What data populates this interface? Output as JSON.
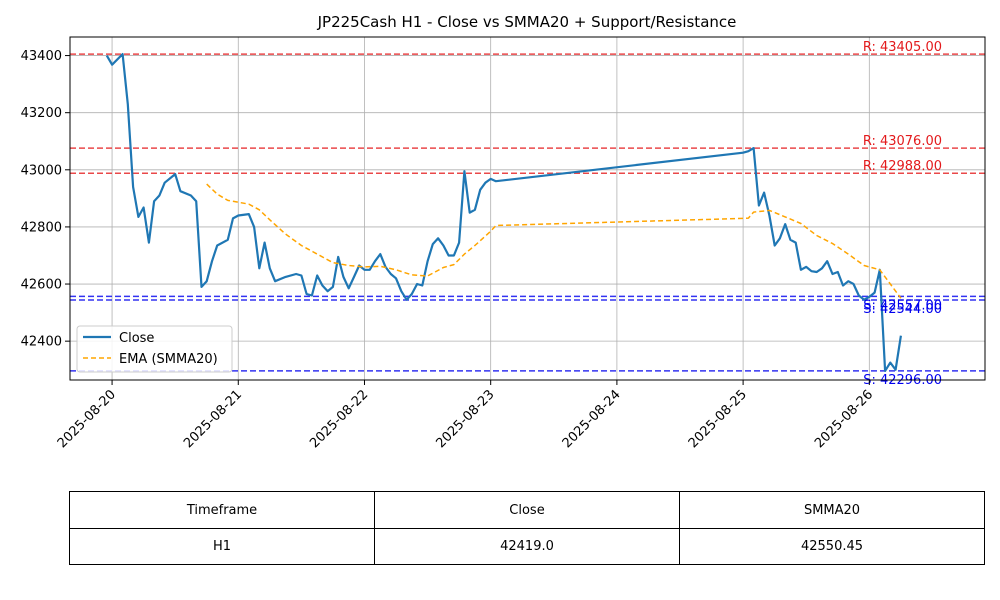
{
  "chart_data": {
    "type": "line",
    "title": "JP225Cash H1 - Close vs SMMA20 + Support/Resistance",
    "xlabel": "",
    "ylabel": "",
    "xlim": [
      "2025-08-19T16:00",
      "2025-08-26T22:00"
    ],
    "ylim": [
      42264,
      43465
    ],
    "x_ticks": [
      "2025-08-20",
      "2025-08-21",
      "2025-08-22",
      "2025-08-23",
      "2025-08-24",
      "2025-08-25",
      "2025-08-26"
    ],
    "y_ticks": [
      42400,
      42600,
      42800,
      43000,
      43200,
      43400
    ],
    "grid": true,
    "legend_position": "lower-left",
    "series": [
      {
        "name": "Close",
        "color": "#1f77b4",
        "style": "solid",
        "points": [
          [
            "2025-08-19T23:00",
            43400
          ],
          [
            "2025-08-20T00:00",
            43368
          ],
          [
            "2025-08-20T02:00",
            43405
          ],
          [
            "2025-08-20T03:00",
            43230
          ],
          [
            "2025-08-20T04:00",
            42940
          ],
          [
            "2025-08-20T05:00",
            42835
          ],
          [
            "2025-08-20T06:00",
            42868
          ],
          [
            "2025-08-20T07:00",
            42745
          ],
          [
            "2025-08-20T08:00",
            42890
          ],
          [
            "2025-08-20T09:00",
            42910
          ],
          [
            "2025-08-20T10:00",
            42955
          ],
          [
            "2025-08-20T12:00",
            42985
          ],
          [
            "2025-08-20T13:00",
            42925
          ],
          [
            "2025-08-20T15:00",
            42910
          ],
          [
            "2025-08-20T16:00",
            42890
          ],
          [
            "2025-08-20T17:00",
            42590
          ],
          [
            "2025-08-20T18:00",
            42610
          ],
          [
            "2025-08-20T19:00",
            42680
          ],
          [
            "2025-08-20T20:00",
            42735
          ],
          [
            "2025-08-20T22:00",
            42755
          ],
          [
            "2025-08-20T23:00",
            42830
          ],
          [
            "2025-08-21T00:00",
            42840
          ],
          [
            "2025-08-21T02:00",
            42845
          ],
          [
            "2025-08-21T03:00",
            42800
          ],
          [
            "2025-08-21T04:00",
            42655
          ],
          [
            "2025-08-21T05:00",
            42745
          ],
          [
            "2025-08-21T06:00",
            42655
          ],
          [
            "2025-08-21T07:00",
            42610
          ],
          [
            "2025-08-21T09:00",
            42625
          ],
          [
            "2025-08-21T11:00",
            42635
          ],
          [
            "2025-08-21T12:00",
            42630
          ],
          [
            "2025-08-21T13:00",
            42565
          ],
          [
            "2025-08-21T14:00",
            42560
          ],
          [
            "2025-08-21T15:00",
            42630
          ],
          [
            "2025-08-21T16:00",
            42595
          ],
          [
            "2025-08-21T17:00",
            42575
          ],
          [
            "2025-08-21T18:00",
            42590
          ],
          [
            "2025-08-21T19:00",
            42695
          ],
          [
            "2025-08-21T20:00",
            42625
          ],
          [
            "2025-08-21T21:00",
            42585
          ],
          [
            "2025-08-21T22:00",
            42625
          ],
          [
            "2025-08-21T23:00",
            42665
          ],
          [
            "2025-08-22T00:00",
            42650
          ],
          [
            "2025-08-22T01:00",
            42650
          ],
          [
            "2025-08-22T02:00",
            42680
          ],
          [
            "2025-08-22T03:00",
            42705
          ],
          [
            "2025-08-22T04:00",
            42660
          ],
          [
            "2025-08-22T05:00",
            42635
          ],
          [
            "2025-08-22T06:00",
            42620
          ],
          [
            "2025-08-22T07:00",
            42575
          ],
          [
            "2025-08-22T08:00",
            42545
          ],
          [
            "2025-08-22T09:00",
            42565
          ],
          [
            "2025-08-22T10:00",
            42600
          ],
          [
            "2025-08-22T11:00",
            42595
          ],
          [
            "2025-08-22T12:00",
            42680
          ],
          [
            "2025-08-22T13:00",
            42740
          ],
          [
            "2025-08-22T14:00",
            42760
          ],
          [
            "2025-08-22T15:00",
            42735
          ],
          [
            "2025-08-22T16:00",
            42700
          ],
          [
            "2025-08-22T17:00",
            42700
          ],
          [
            "2025-08-22T18:00",
            42745
          ],
          [
            "2025-08-22T19:00",
            42995
          ],
          [
            "2025-08-22T20:00",
            42850
          ],
          [
            "2025-08-22T21:00",
            42860
          ],
          [
            "2025-08-22T22:00",
            42930
          ],
          [
            "2025-08-22T23:00",
            42955
          ],
          [
            "2025-08-23T00:00",
            42968
          ],
          [
            "2025-08-23T01:00",
            42960
          ],
          [
            "2025-08-25T00:00",
            43060
          ],
          [
            "2025-08-25T01:00",
            43065
          ],
          [
            "2025-08-25T02:00",
            43076
          ],
          [
            "2025-08-25T03:00",
            42875
          ],
          [
            "2025-08-25T04:00",
            42920
          ],
          [
            "2025-08-25T05:00",
            42840
          ],
          [
            "2025-08-25T06:00",
            42735
          ],
          [
            "2025-08-25T07:00",
            42760
          ],
          [
            "2025-08-25T08:00",
            42810
          ],
          [
            "2025-08-25T09:00",
            42755
          ],
          [
            "2025-08-25T10:00",
            42745
          ],
          [
            "2025-08-25T11:00",
            42650
          ],
          [
            "2025-08-25T12:00",
            42660
          ],
          [
            "2025-08-25T13:00",
            42645
          ],
          [
            "2025-08-25T14:00",
            42642
          ],
          [
            "2025-08-25T15:00",
            42655
          ],
          [
            "2025-08-25T16:00",
            42680
          ],
          [
            "2025-08-25T17:00",
            42635
          ],
          [
            "2025-08-25T18:00",
            42642
          ],
          [
            "2025-08-25T19:00",
            42595
          ],
          [
            "2025-08-25T20:00",
            42610
          ],
          [
            "2025-08-25T21:00",
            42600
          ],
          [
            "2025-08-25T22:00",
            42560
          ],
          [
            "2025-08-25T23:00",
            42545
          ],
          [
            "2025-08-26T00:00",
            42555
          ],
          [
            "2025-08-26T01:00",
            42570
          ],
          [
            "2025-08-26T02:00",
            42650
          ],
          [
            "2025-08-26T03:00",
            42296
          ],
          [
            "2025-08-26T04:00",
            42325
          ],
          [
            "2025-08-26T05:00",
            42300
          ],
          [
            "2025-08-26T06:00",
            42419
          ]
        ]
      },
      {
        "name": "EMA (SMMA20)",
        "color": "#ffa500",
        "style": "dashed",
        "points": [
          [
            "2025-08-20T18:00",
            42950
          ],
          [
            "2025-08-20T20:00",
            42915
          ],
          [
            "2025-08-20T22:00",
            42893
          ],
          [
            "2025-08-21T02:00",
            42880
          ],
          [
            "2025-08-21T04:00",
            42860
          ],
          [
            "2025-08-21T06:00",
            42825
          ],
          [
            "2025-08-21T09:00",
            42775
          ],
          [
            "2025-08-21T12:00",
            42735
          ],
          [
            "2025-08-21T15:00",
            42705
          ],
          [
            "2025-08-21T18:00",
            42675
          ],
          [
            "2025-08-21T21:00",
            42665
          ],
          [
            "2025-08-22T00:00",
            42660
          ],
          [
            "2025-08-22T03:00",
            42662
          ],
          [
            "2025-08-22T06:00",
            42650
          ],
          [
            "2025-08-22T09:00",
            42632
          ],
          [
            "2025-08-22T12:00",
            42628
          ],
          [
            "2025-08-22T15:00",
            42658
          ],
          [
            "2025-08-22T17:00",
            42668
          ],
          [
            "2025-08-22T19:00",
            42705
          ],
          [
            "2025-08-22T21:00",
            42735
          ],
          [
            "2025-08-23T00:00",
            42785
          ],
          [
            "2025-08-23T01:00",
            42805
          ],
          [
            "2025-08-25T00:00",
            42830
          ],
          [
            "2025-08-25T01:00",
            42831
          ],
          [
            "2025-08-25T02:00",
            42852
          ],
          [
            "2025-08-25T05:00",
            42858
          ],
          [
            "2025-08-25T08:00",
            42835
          ],
          [
            "2025-08-25T11:00",
            42812
          ],
          [
            "2025-08-25T14:00",
            42770
          ],
          [
            "2025-08-25T17:00",
            42742
          ],
          [
            "2025-08-25T20:00",
            42705
          ],
          [
            "2025-08-25T23:00",
            42665
          ],
          [
            "2025-08-26T02:00",
            42650
          ],
          [
            "2025-08-26T04:00",
            42600
          ],
          [
            "2025-08-26T06:00",
            42550.45
          ]
        ]
      }
    ],
    "levels": [
      {
        "kind": "resistance",
        "value": 43405,
        "label": "R: 43405.00",
        "color": "#e31a1c"
      },
      {
        "kind": "resistance",
        "value": 43076,
        "label": "R: 43076.00",
        "color": "#e31a1c"
      },
      {
        "kind": "resistance",
        "value": 42988,
        "label": "R: 42988.00",
        "color": "#e31a1c"
      },
      {
        "kind": "support",
        "value": 42557,
        "label": "S: 42557.00",
        "color": "#0000ee"
      },
      {
        "kind": "support",
        "value": 42544,
        "label": "S: 42544.00",
        "color": "#0000ee"
      },
      {
        "kind": "support",
        "value": 42296,
        "label": "S: 42296.00",
        "color": "#0000ee"
      }
    ]
  },
  "table": {
    "headers": [
      "Timeframe",
      "Close",
      "SMMA20"
    ],
    "row": [
      "H1",
      "42419.0",
      "42550.45"
    ]
  }
}
